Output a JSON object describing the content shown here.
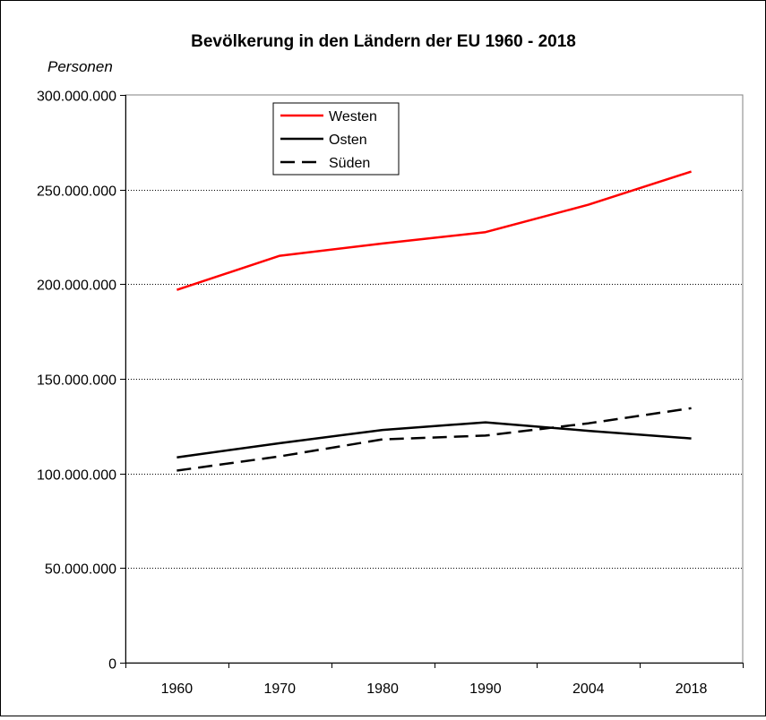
{
  "chart_data": {
    "type": "line",
    "title": "Bevölkerung in den Ländern der EU 1960 - 2018",
    "ylabel": "Personen",
    "xlabel": "",
    "categories": [
      "1960",
      "1970",
      "1980",
      "1990",
      "2004",
      "2018"
    ],
    "ylim": [
      0,
      300000000
    ],
    "y_ticks": [
      0,
      50000000,
      100000000,
      150000000,
      200000000,
      250000000,
      300000000
    ],
    "y_tick_labels": [
      "0",
      "50.000.000",
      "100.000.000",
      "150.000.000",
      "200.000.000",
      "250.000.000",
      "300.000.000"
    ],
    "grid": "horizontal dotted",
    "legend_placement": "top-left inside",
    "series": [
      {
        "name": "Westen",
        "values": [
          197000000,
          215000000,
          221500000,
          227500000,
          242000000,
          259500000
        ],
        "color": "#ff0000",
        "style": "solid"
      },
      {
        "name": "Osten",
        "values": [
          108500000,
          116000000,
          123000000,
          127000000,
          122500000,
          118500000
        ],
        "color": "#000000",
        "style": "solid"
      },
      {
        "name": "Süden",
        "values": [
          101500000,
          109000000,
          118000000,
          120000000,
          126500000,
          134500000
        ],
        "color": "#000000",
        "style": "dashed"
      }
    ]
  }
}
